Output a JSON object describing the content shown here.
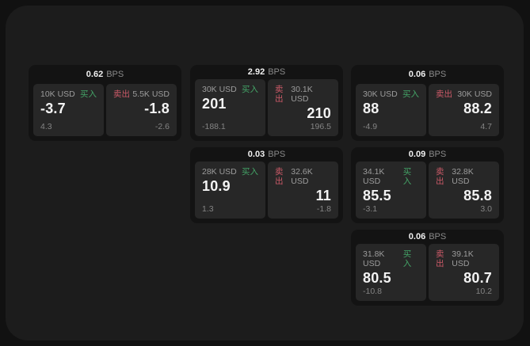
{
  "page": {
    "background": "#111111",
    "panel_background": "#1c1c1c"
  },
  "colors": {
    "buy_green": "#44a467",
    "sell_red": "#cc5a68",
    "card_background": "#131313",
    "tile_background": "#272727"
  },
  "labels": {
    "bps_unit": "BPS",
    "buy": "买入",
    "sell": "卖出"
  },
  "cards": [
    {
      "bps": "0.62",
      "buy": {
        "size": "10K USD",
        "price": "-3.7",
        "delta": "4.3"
      },
      "sell": {
        "size": "5.5K USD",
        "price": "-1.8",
        "delta": "-2.6"
      }
    },
    {
      "bps": "2.92",
      "buy": {
        "size": "30K USD",
        "price": "201",
        "delta": "-188.1"
      },
      "sell": {
        "size": "30.1K USD",
        "price": "210",
        "delta": "196.5"
      }
    },
    {
      "bps": "0.06",
      "buy": {
        "size": "30K USD",
        "price": "88",
        "delta": "-4.9"
      },
      "sell": {
        "size": "30K USD",
        "price": "88.2",
        "delta": "4.7"
      }
    },
    {
      "bps": "0.03",
      "buy": {
        "size": "28K USD",
        "price": "10.9",
        "delta": "1.3"
      },
      "sell": {
        "size": "32.6K USD",
        "price": "11",
        "delta": "-1.8"
      }
    },
    {
      "bps": "0.09",
      "buy": {
        "size": "34.1K USD",
        "price": "85.5",
        "delta": "-3.1"
      },
      "sell": {
        "size": "32.8K USD",
        "price": "85.8",
        "delta": "3.0"
      }
    },
    {
      "bps": "0.06",
      "buy": {
        "size": "31.8K USD",
        "price": "80.5",
        "delta": "-10.8"
      },
      "sell": {
        "size": "39.1K USD",
        "price": "80.7",
        "delta": "10.2"
      }
    }
  ]
}
